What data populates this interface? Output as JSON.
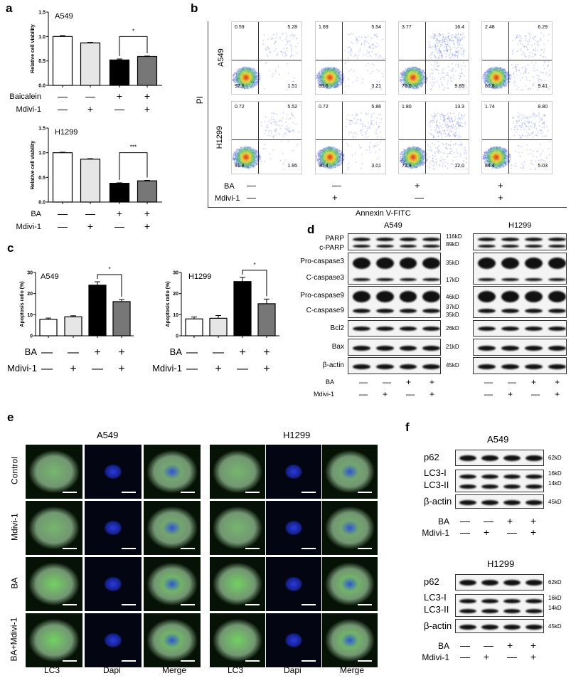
{
  "panels": {
    "a": "a",
    "b": "b",
    "c": "c",
    "d": "d",
    "e": "e",
    "f": "f"
  },
  "chart_data": [
    {
      "id": "a-A549",
      "type": "bar",
      "title": "A549",
      "ylabel": "Relative cell viability",
      "ylim": [
        0,
        1.5
      ],
      "yticks": [
        "0.0",
        "0.5",
        "1.0",
        "1.5"
      ],
      "values": [
        1.0,
        0.87,
        0.52,
        0.59
      ],
      "errors": [
        0.02,
        0.01,
        0.02,
        0.01
      ],
      "fills": [
        "#ffffff",
        "#e6e6e6",
        "#000000",
        "#777777"
      ],
      "significance": "*",
      "rows": [
        {
          "label": "Baicalein",
          "symbols": [
            "—",
            "—",
            "+",
            "+"
          ]
        },
        {
          "label": "Mdivi-1",
          "symbols": [
            "—",
            "+",
            "—",
            "+"
          ]
        }
      ]
    },
    {
      "id": "a-H1299",
      "type": "bar",
      "title": "H1299",
      "ylabel": "Relative cell viability",
      "ylim": [
        0,
        1.5
      ],
      "yticks": [
        "0.0",
        "0.5",
        "1.0",
        "1.5"
      ],
      "values": [
        1.0,
        0.87,
        0.38,
        0.43
      ],
      "errors": [
        0.01,
        0.01,
        0.01,
        0.01
      ],
      "fills": [
        "#ffffff",
        "#e6e6e6",
        "#000000",
        "#777777"
      ],
      "significance": "***",
      "rows": [
        {
          "label": "BA",
          "symbols": [
            "—",
            "—",
            "+",
            "+"
          ]
        },
        {
          "label": "Mdivi-1",
          "symbols": [
            "—",
            "+",
            "—",
            "+"
          ]
        }
      ]
    },
    {
      "id": "c-A549",
      "type": "bar",
      "title": "A549",
      "ylabel": "Apoptosis ratio (%)",
      "ylim": [
        0,
        30
      ],
      "yticks": [
        "0",
        "10",
        "20",
        "30"
      ],
      "values": [
        7.8,
        9.0,
        24.0,
        16.2
      ],
      "errors": [
        0.6,
        0.5,
        1.6,
        1.0
      ],
      "fills": [
        "#ffffff",
        "#e6e6e6",
        "#000000",
        "#777777"
      ],
      "significance": "*",
      "rows": [
        {
          "label": "BA",
          "symbols": [
            "—",
            "—",
            "+",
            "+"
          ]
        },
        {
          "label": "Mdivi-1",
          "symbols": [
            "—",
            "+",
            "—",
            "+"
          ]
        }
      ]
    },
    {
      "id": "c-H1299",
      "type": "bar",
      "title": "H1299",
      "ylabel": "Apoptosis ratio (%)",
      "ylim": [
        0,
        30
      ],
      "yticks": [
        "0",
        "10",
        "20",
        "30"
      ],
      "values": [
        8.0,
        8.3,
        25.7,
        15.2
      ],
      "errors": [
        0.9,
        1.3,
        2.0,
        2.2
      ],
      "fills": [
        "#ffffff",
        "#e6e6e6",
        "#000000",
        "#777777"
      ],
      "significance": "*",
      "rows": [
        {
          "label": "BA",
          "symbols": [
            "—",
            "—",
            "+",
            "+"
          ]
        },
        {
          "label": "Mdivi-1",
          "symbols": [
            "—",
            "+",
            "—",
            "+"
          ]
        }
      ]
    }
  ],
  "flow": {
    "ylabel": "PI",
    "xlabel": "Annexin V-FITC",
    "rows": [
      {
        "label": "A549",
        "plots": [
          [
            "0.59",
            "5.28",
            "92.6",
            "1.51"
          ],
          [
            "1.69",
            "5.54",
            "89.6",
            "3.21"
          ],
          [
            "3.77",
            "16.4",
            "70.0",
            "9.85"
          ],
          [
            "2.48",
            "6.29",
            "81.8",
            "9.41"
          ]
        ]
      },
      {
        "label": "H1299",
        "plots": [
          [
            "0.72",
            "5.52",
            "91.8",
            "1.95"
          ],
          [
            "0.72",
            "5.86",
            "90.4",
            "3.01"
          ],
          [
            "1.80",
            "13.3",
            "72.9",
            "12.0"
          ],
          [
            "1.74",
            "8.80",
            "84.4",
            "5.03"
          ]
        ]
      }
    ],
    "treatments": [
      {
        "label": "BA",
        "symbols": [
          "—",
          "—",
          "+",
          "+"
        ]
      },
      {
        "label": "Mdivi-1",
        "symbols": [
          "—",
          "+",
          "—",
          "+"
        ]
      }
    ]
  },
  "western_d": {
    "cells": [
      "A549",
      "H1299"
    ],
    "proteins": [
      "PARP",
      "c-PARP",
      "Pro-caspase3",
      "C-caspase3",
      "Pro-caspase9",
      "C-caspase9",
      "Bcl2",
      "Bax",
      "β-actin"
    ],
    "markers": [
      "116kD",
      "89kD",
      "35kD",
      "17kD",
      "46kD",
      "37kD",
      "35kD",
      "26kD",
      "21kD",
      "45kD"
    ],
    "treatments": [
      {
        "label": "BA",
        "symbols": [
          "—",
          "—",
          "+",
          "+"
        ]
      },
      {
        "label": "Mdivi-1",
        "symbols": [
          "—",
          "+",
          "—",
          "+"
        ]
      }
    ]
  },
  "microscopy": {
    "cells": [
      "A549",
      "H1299"
    ],
    "rows": [
      "Control",
      "Mdivi-1",
      "BA",
      "BA+Mdivi-1"
    ],
    "channels": [
      "LC3",
      "Dapi",
      "Merge"
    ]
  },
  "western_f": {
    "blocks": [
      {
        "cell": "A549",
        "proteins": [
          "p62",
          "LC3-I",
          "LC3-II",
          "β-actin"
        ],
        "markers": [
          "62kD",
          "16kD",
          "14kD",
          "45kD"
        ]
      },
      {
        "cell": "H1299",
        "proteins": [
          "p62",
          "LC3-I",
          "LC3-II",
          "β-actin"
        ],
        "markers": [
          "62kD",
          "16kD",
          "14kD",
          "45kD"
        ]
      }
    ],
    "treatments": [
      {
        "label": "BA",
        "symbols": [
          "—",
          "—",
          "+",
          "+"
        ]
      },
      {
        "label": "Mdivi-1",
        "symbols": [
          "—",
          "+",
          "—",
          "+"
        ]
      }
    ]
  }
}
